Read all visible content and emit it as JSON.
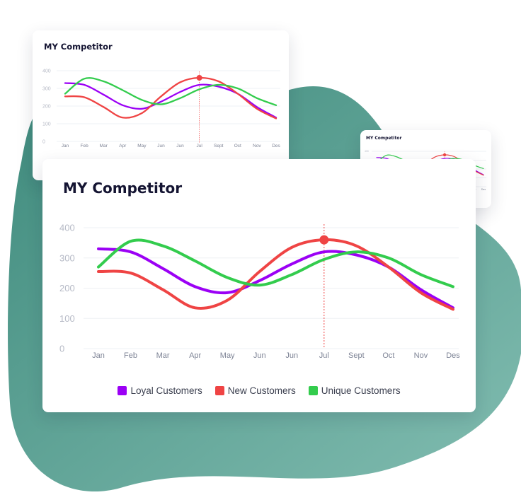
{
  "theme": {
    "blob_color_start": "#3f8b7d",
    "blob_color_end": "#82bdb1",
    "card_background": "#ffffff",
    "title_color": "#141432",
    "marker_line_color": "#ef4444"
  },
  "chart_data": [
    {
      "type": "line",
      "title": "MY Competitor",
      "categories": [
        "Jan",
        "Feb",
        "Mar",
        "Apr",
        "May",
        "Jun",
        "Jun",
        "Jul",
        "Sept",
        "Oct",
        "Nov",
        "Des"
      ],
      "series": [
        {
          "name": "Loyal Customers",
          "color": "#9b00f5",
          "values": [
            330,
            320,
            265,
            205,
            185,
            225,
            280,
            320,
            310,
            270,
            195,
            135
          ]
        },
        {
          "name": "New Customers",
          "color": "#ef4444",
          "values": [
            255,
            250,
            195,
            135,
            160,
            255,
            335,
            360,
            340,
            270,
            185,
            130
          ]
        },
        {
          "name": "Unique Customers",
          "color": "#33cc4d",
          "values": [
            270,
            355,
            340,
            290,
            235,
            210,
            245,
            295,
            320,
            300,
            245,
            205
          ]
        }
      ],
      "ylim": [
        0,
        400
      ],
      "yticks": [
        0,
        100,
        200,
        300,
        400
      ],
      "grid": true,
      "legend_position": "bottom",
      "highlight": {
        "category_index": 7,
        "series": "New Customers",
        "value": 360
      },
      "xlabel": "",
      "ylabel": ""
    }
  ]
}
